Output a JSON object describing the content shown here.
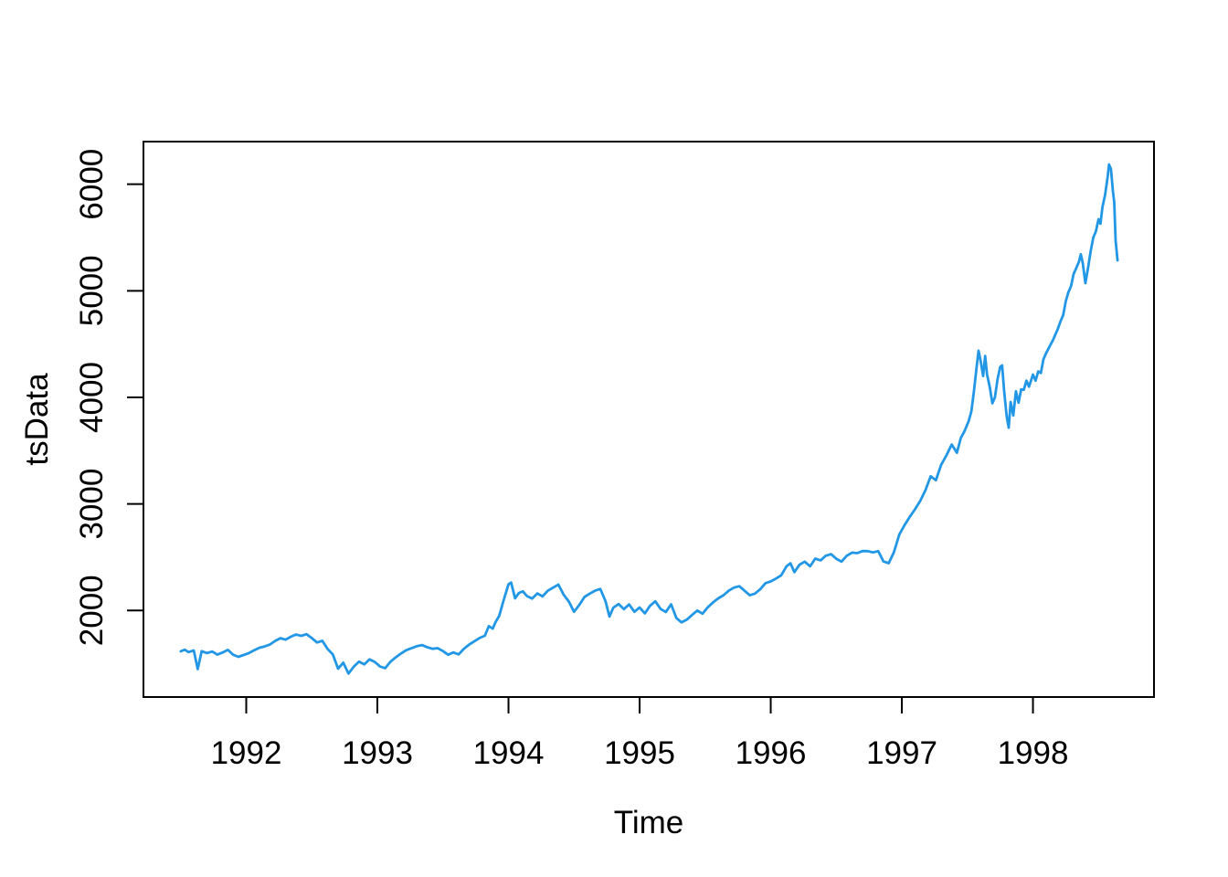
{
  "figure": {
    "background": "#ffffff",
    "axis_color": "#000000"
  },
  "chart_data": {
    "type": "line",
    "title": "",
    "xlabel": "Time",
    "ylabel": "tsData",
    "grid": false,
    "legend": "none",
    "line_color": "#2297E6",
    "xlim": [
      1991.216,
      1998.923
    ],
    "ylim": [
      1188,
      6400
    ],
    "x_ticks": [
      1992,
      1993,
      1994,
      1995,
      1996,
      1997,
      1998
    ],
    "y_ticks": [
      2000,
      3000,
      4000,
      5000,
      6000
    ],
    "series": [
      {
        "name": "tsData",
        "color": "#2297E6",
        "x": [
          1991.5,
          1991.53,
          1991.56,
          1991.6,
          1991.63,
          1991.66,
          1991.7,
          1991.74,
          1991.78,
          1991.82,
          1991.86,
          1991.9,
          1991.94,
          1991.98,
          1992.02,
          1992.06,
          1992.1,
          1992.14,
          1992.18,
          1992.22,
          1992.26,
          1992.3,
          1992.34,
          1992.38,
          1992.42,
          1992.46,
          1992.5,
          1992.54,
          1992.58,
          1992.62,
          1992.66,
          1992.7,
          1992.74,
          1992.78,
          1992.82,
          1992.86,
          1992.9,
          1992.94,
          1992.98,
          1993.02,
          1993.06,
          1993.1,
          1993.14,
          1993.18,
          1993.22,
          1993.26,
          1993.3,
          1993.34,
          1993.38,
          1993.42,
          1993.46,
          1993.5,
          1993.54,
          1993.58,
          1993.62,
          1993.66,
          1993.7,
          1993.74,
          1993.78,
          1993.82,
          1993.85,
          1993.88,
          1993.9,
          1993.93,
          1993.96,
          1994.0,
          1994.02,
          1994.05,
          1994.08,
          1994.11,
          1994.14,
          1994.18,
          1994.22,
          1994.26,
          1994.3,
          1994.34,
          1994.38,
          1994.42,
          1994.46,
          1994.5,
          1994.54,
          1994.58,
          1994.62,
          1994.66,
          1994.7,
          1994.74,
          1994.77,
          1994.8,
          1994.84,
          1994.88,
          1994.92,
          1994.96,
          1995.0,
          1995.04,
          1995.08,
          1995.12,
          1995.16,
          1995.2,
          1995.24,
          1995.28,
          1995.32,
          1995.36,
          1995.4,
          1995.44,
          1995.48,
          1995.52,
          1995.56,
          1995.6,
          1995.64,
          1995.68,
          1995.72,
          1995.76,
          1995.8,
          1995.84,
          1995.88,
          1995.92,
          1995.96,
          1996.0,
          1996.04,
          1996.08,
          1996.12,
          1996.15,
          1996.18,
          1996.22,
          1996.26,
          1996.3,
          1996.34,
          1996.38,
          1996.42,
          1996.46,
          1996.5,
          1996.54,
          1996.58,
          1996.62,
          1996.66,
          1996.7,
          1996.74,
          1996.78,
          1996.82,
          1996.86,
          1996.9,
          1996.94,
          1996.98,
          1997.02,
          1997.06,
          1997.1,
          1997.14,
          1997.18,
          1997.22,
          1997.26,
          1997.3,
          1997.34,
          1997.38,
          1997.42,
          1997.45,
          1997.48,
          1997.51,
          1997.53,
          1997.55,
          1997.57,
          1997.585,
          1997.6,
          1997.62,
          1997.635,
          1997.65,
          1997.67,
          1997.69,
          1997.71,
          1997.73,
          1997.75,
          1997.765,
          1997.78,
          1997.8,
          1997.815,
          1997.83,
          1997.85,
          1997.87,
          1997.89,
          1997.91,
          1997.93,
          1997.95,
          1997.97,
          1998.0,
          1998.02,
          1998.04,
          1998.06,
          1998.08,
          1998.1,
          1998.13,
          1998.15,
          1998.17,
          1998.19,
          1998.21,
          1998.23,
          1998.25,
          1998.27,
          1998.29,
          1998.31,
          1998.33,
          1998.35,
          1998.365,
          1998.38,
          1998.4,
          1998.42,
          1998.44,
          1998.46,
          1998.48,
          1998.5,
          1998.515,
          1998.53,
          1998.55,
          1998.57,
          1998.58,
          1998.595,
          1998.61,
          1998.62,
          1998.63,
          1998.645
        ],
        "y": [
          1617,
          1632,
          1610,
          1625,
          1450,
          1618,
          1600,
          1615,
          1586,
          1606,
          1630,
          1585,
          1565,
          1582,
          1600,
          1627,
          1650,
          1663,
          1680,
          1714,
          1740,
          1726,
          1754,
          1774,
          1762,
          1778,
          1741,
          1700,
          1716,
          1640,
          1588,
          1455,
          1510,
          1408,
          1473,
          1520,
          1494,
          1541,
          1518,
          1474,
          1459,
          1520,
          1560,
          1596,
          1628,
          1646,
          1665,
          1676,
          1656,
          1641,
          1647,
          1619,
          1585,
          1606,
          1588,
          1641,
          1680,
          1712,
          1742,
          1763,
          1853,
          1830,
          1888,
          1953,
          2085,
          2245,
          2262,
          2115,
          2165,
          2180,
          2136,
          2112,
          2160,
          2133,
          2186,
          2214,
          2243,
          2150,
          2085,
          1988,
          2052,
          2128,
          2158,
          2186,
          2202,
          2088,
          1943,
          2027,
          2061,
          2013,
          2057,
          1988,
          2028,
          1973,
          2044,
          2086,
          2014,
          1986,
          2058,
          1930,
          1888,
          1914,
          1958,
          2000,
          1970,
          2030,
          2076,
          2114,
          2144,
          2186,
          2215,
          2228,
          2186,
          2143,
          2158,
          2200,
          2257,
          2272,
          2300,
          2330,
          2415,
          2443,
          2360,
          2430,
          2458,
          2415,
          2487,
          2470,
          2514,
          2529,
          2486,
          2458,
          2514,
          2543,
          2538,
          2558,
          2557,
          2545,
          2557,
          2460,
          2444,
          2548,
          2712,
          2800,
          2878,
          2950,
          3028,
          3130,
          3260,
          3222,
          3368,
          3455,
          3557,
          3480,
          3620,
          3688,
          3778,
          3868,
          4062,
          4280,
          4438,
          4350,
          4200,
          4388,
          4214,
          4100,
          3944,
          4000,
          4170,
          4286,
          4300,
          4058,
          3820,
          3714,
          3957,
          3830,
          4057,
          3950,
          4075,
          4071,
          4157,
          4100,
          4214,
          4157,
          4243,
          4229,
          4357,
          4414,
          4486,
          4530,
          4586,
          4643,
          4714,
          4771,
          4900,
          4986,
          5043,
          5157,
          5214,
          5271,
          5343,
          5257,
          5071,
          5214,
          5371,
          5500,
          5557,
          5671,
          5629,
          5786,
          5900,
          6071,
          6186,
          6143,
          5929,
          5829,
          5471,
          5286
        ]
      }
    ]
  }
}
